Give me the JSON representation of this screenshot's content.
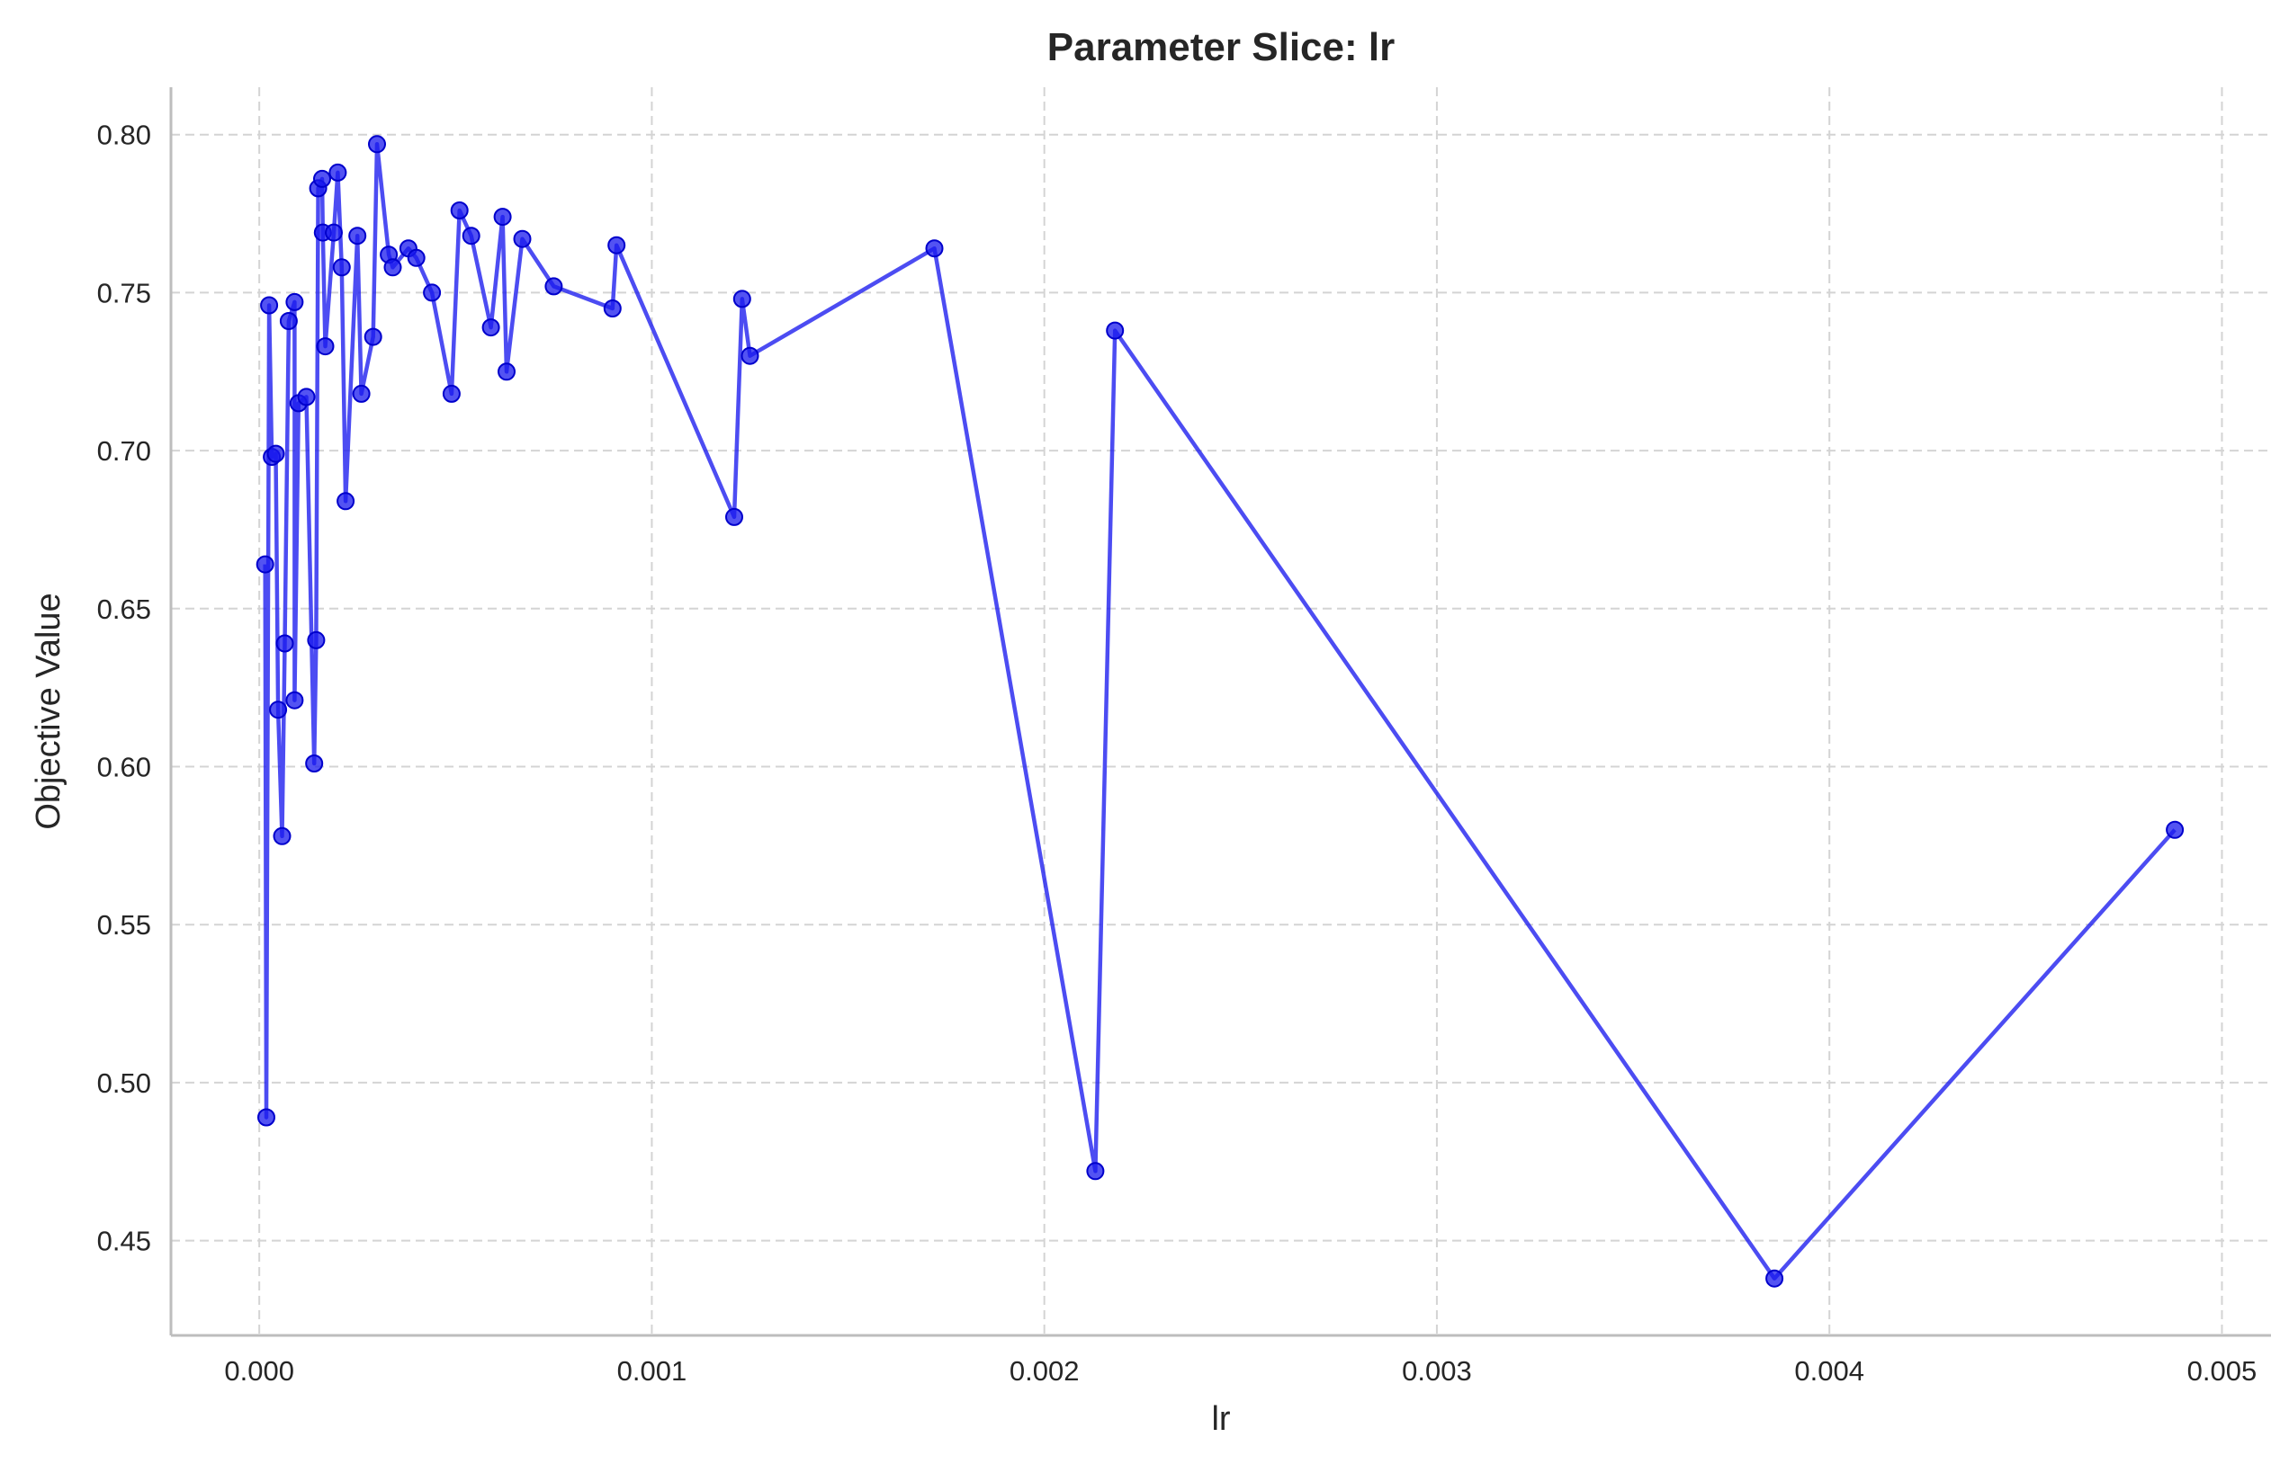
{
  "chart_data": {
    "type": "line",
    "title": "Parameter Slice: lr",
    "xlabel": "lr",
    "ylabel": "Objective Value",
    "xlim": [
      -0.000225,
      0.005125
    ],
    "ylim": [
      0.42,
      0.815
    ],
    "xticks": [
      0.0,
      0.001,
      0.002,
      0.003,
      0.004,
      0.005
    ],
    "xtick_labels": [
      "0.000",
      "0.001",
      "0.002",
      "0.003",
      "0.004",
      "0.005"
    ],
    "yticks": [
      0.45,
      0.5,
      0.55,
      0.6,
      0.65,
      0.7,
      0.75,
      0.8
    ],
    "ytick_labels": [
      "0.45",
      "0.50",
      "0.55",
      "0.60",
      "0.65",
      "0.70",
      "0.75",
      "0.80"
    ],
    "grid": true,
    "series_color": "#1a1aee",
    "series": [
      {
        "x": [
          1.5e-05,
          1.8e-05,
          2.5e-05,
          3.2e-05,
          4.2e-05,
          4.8e-05,
          5.8e-05,
          6.5e-05,
          7.5e-05,
          9e-05,
          9e-05,
          0.0001,
          0.00012,
          0.00014,
          0.000145,
          0.00015,
          0.00016,
          0.000162,
          0.000168,
          0.00019,
          0.0002,
          0.00021,
          0.00022,
          0.00025,
          0.00026,
          0.00029,
          0.0003,
          0.00033,
          0.00034,
          0.00038,
          0.0004,
          0.00044,
          0.00049,
          0.00051,
          0.00054,
          0.00059,
          0.00062,
          0.00063,
          0.00067,
          0.00075,
          0.0009,
          0.00091,
          0.00121,
          0.00123,
          0.00125,
          0.00172,
          0.00213,
          0.00218,
          0.00386,
          0.00488
        ],
        "y": [
          0.664,
          0.489,
          0.746,
          0.698,
          0.699,
          0.618,
          0.578,
          0.639,
          0.741,
          0.747,
          0.621,
          0.715,
          0.717,
          0.601,
          0.64,
          0.783,
          0.786,
          0.769,
          0.733,
          0.769,
          0.788,
          0.758,
          0.684,
          0.768,
          0.718,
          0.736,
          0.797,
          0.762,
          0.758,
          0.764,
          0.761,
          0.75,
          0.718,
          0.776,
          0.768,
          0.739,
          0.774,
          0.725,
          0.767,
          0.752,
          0.745,
          0.765,
          0.679,
          0.748,
          0.73,
          0.764,
          0.472,
          0.738,
          0.438,
          0.58
        ]
      }
    ]
  }
}
